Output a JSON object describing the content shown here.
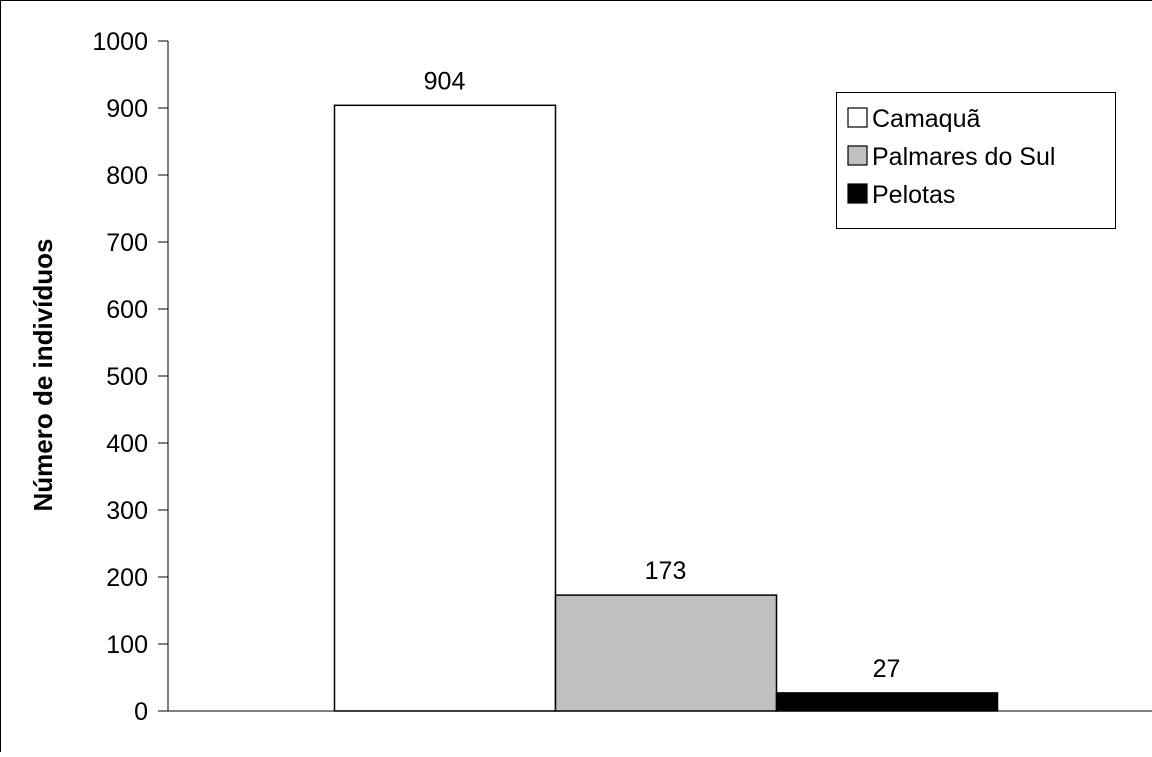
{
  "chart_data": {
    "type": "bar",
    "title": "",
    "xlabel": "",
    "ylabel": "Número de indivíduos",
    "ylim": [
      0,
      1000
    ],
    "yticks": [
      0,
      100,
      200,
      300,
      400,
      500,
      600,
      700,
      800,
      900,
      1000
    ],
    "grid": false,
    "legend_position": "top-right",
    "series": [
      {
        "name": "Camaquã",
        "value": 904,
        "color": "#ffffff"
      },
      {
        "name": "Palmares do Sul",
        "value": 173,
        "color": "#c0c0c0"
      },
      {
        "name": "Pelotas",
        "value": 27,
        "color": "#000000"
      }
    ]
  }
}
